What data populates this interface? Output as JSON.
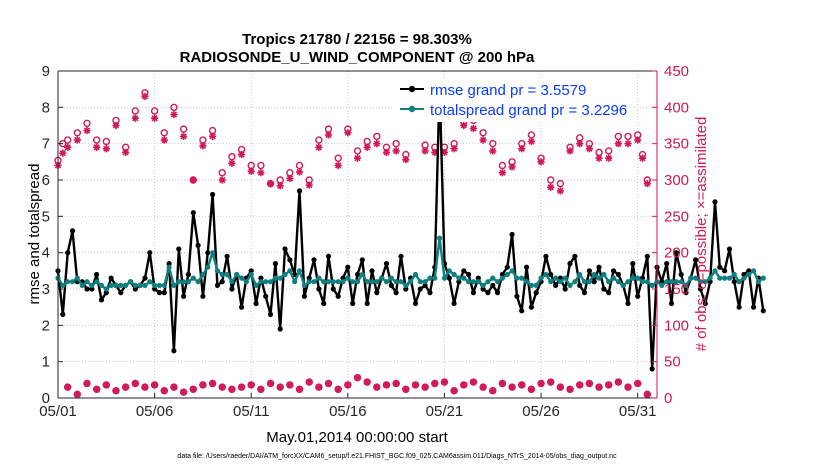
{
  "chart_data": {
    "type": "line",
    "title": "Tropics 21780 / 22156 = 98.303%",
    "subtitle": "RADIOSONDE_U_WIND_COMPONENT @ 200 hPa",
    "xlabel": "May.01,2014 00:00:00 start",
    "ylabel": "rmse and totalspread",
    "y2label": "# of obs: o=possible; ×=assimilated",
    "footnote": "data file: /Users/raeder/DAI/ATM_forcXX/CAM6_setup/f.e21.FHIST_BGC.f09_025.CAM6assim.011/Diags_NTrS_2014-05/obs_diag_output.nc",
    "x_start_day": 1,
    "x_end_day": 32,
    "xlim": [
      1,
      32
    ],
    "ylim": [
      0,
      9
    ],
    "y2lim": [
      0,
      450
    ],
    "x_tick_labels": [
      "05/01",
      "05/06",
      "05/11",
      "05/16",
      "05/21",
      "05/26",
      "05/31"
    ],
    "x_tick_days": [
      1,
      6,
      11,
      16,
      21,
      26,
      31
    ],
    "y_ticks": [
      0,
      1,
      2,
      3,
      4,
      5,
      6,
      7,
      8,
      9
    ],
    "y2_ticks": [
      0,
      50,
      100,
      150,
      200,
      250,
      300,
      350,
      400,
      450
    ],
    "grid": true,
    "legend_position": "top-right",
    "step_days": 0.25,
    "series": [
      {
        "name": "rmse grand pr = 3.5579",
        "axis": "left",
        "color": "#000000",
        "marker": "circle",
        "values": [
          3.5,
          2.3,
          4.0,
          4.6,
          3.2,
          3.2,
          3.0,
          3.0,
          3.4,
          2.7,
          2.9,
          3.3,
          3.1,
          2.9,
          3.1,
          3.2,
          3.0,
          3.1,
          3.3,
          4.0,
          3.0,
          2.9,
          2.9,
          3.7,
          1.3,
          4.1,
          2.8,
          3.4,
          5.1,
          4.2,
          2.8,
          4.0,
          5.6,
          3.1,
          3.2,
          3.9,
          3.0,
          3.4,
          2.5,
          3.3,
          3.5,
          2.6,
          3.3,
          2.8,
          2.3,
          3.7,
          1.9,
          4.1,
          3.8,
          3.4,
          5.7,
          2.8,
          3.3,
          3.8,
          3.0,
          2.6,
          3.9,
          3.0,
          2.8,
          3.3,
          3.6,
          2.6,
          3.4,
          3.8,
          2.6,
          3.5,
          2.9,
          3.3,
          3.7,
          3.1,
          2.9,
          3.9,
          3.0,
          3.3,
          2.6,
          3.0,
          3.1,
          2.9,
          3.6,
          8.6,
          3.7,
          3.3,
          2.6,
          3.2,
          3.5,
          3.4,
          2.9,
          3.3,
          3.0,
          2.9,
          3.1,
          2.9,
          3.4,
          3.6,
          4.5,
          2.8,
          2.4,
          3.6,
          2.5,
          2.9,
          3.2,
          3.9,
          3.4,
          3.1,
          3.3,
          3.0,
          3.7,
          3.9,
          3.1,
          2.9,
          3.5,
          3.2,
          3.6,
          3.0,
          2.9,
          3.5,
          3.4,
          3.1,
          2.6,
          3.7,
          2.8,
          3.3,
          3.9,
          0.8,
          3.6,
          3.2,
          3.7,
          2.6,
          4.0,
          3.4,
          2.9,
          3.3,
          3.8,
          3.0,
          2.6,
          3.2,
          5.4,
          3.6,
          3.5,
          4.1,
          3.2,
          2.5,
          3.4,
          3.5,
          2.5,
          3.3,
          2.4
        ],
        "stats": {
          "grand": 3.5579
        }
      },
      {
        "name": "totalspread grand pr = 3.2296",
        "axis": "left",
        "color": "#0f7f7f",
        "marker": "circle",
        "values": [
          3.3,
          3.1,
          3.2,
          3.2,
          3.3,
          3.1,
          3.2,
          3.1,
          3.2,
          3.1,
          3.0,
          3.1,
          3.1,
          3.1,
          3.1,
          3.2,
          3.1,
          3.1,
          3.1,
          3.2,
          3.1,
          3.1,
          3.1,
          3.6,
          3.1,
          3.2,
          3.2,
          3.2,
          3.3,
          3.2,
          3.4,
          3.6,
          4.0,
          3.5,
          3.4,
          3.4,
          3.2,
          3.4,
          3.3,
          3.2,
          3.4,
          3.1,
          3.2,
          3.2,
          3.2,
          3.3,
          3.3,
          3.4,
          3.5,
          3.2,
          3.5,
          3.1,
          3.2,
          3.2,
          3.3,
          3.2,
          3.2,
          3.2,
          3.2,
          3.2,
          3.3,
          3.2,
          3.2,
          3.4,
          3.2,
          3.2,
          3.2,
          3.3,
          3.2,
          3.3,
          3.2,
          3.2,
          3.1,
          3.2,
          3.4,
          3.2,
          3.2,
          3.3,
          3.3,
          4.4,
          3.3,
          3.5,
          3.4,
          3.3,
          3.3,
          3.2,
          3.2,
          3.2,
          3.1,
          3.2,
          3.3,
          3.2,
          3.3,
          3.4,
          3.5,
          3.3,
          3.3,
          3.2,
          3.1,
          3.1,
          3.3,
          3.4,
          3.2,
          3.3,
          3.2,
          3.3,
          3.1,
          3.2,
          3.4,
          3.2,
          3.2,
          3.4,
          3.3,
          3.4,
          3.2,
          3.3,
          3.2,
          3.1,
          3.2,
          3.3,
          3.3,
          3.2,
          3.2,
          3.1,
          3.2,
          3.1,
          3.2,
          3.2,
          3.2,
          3.2,
          3.1,
          3.3,
          3.3,
          3.2,
          3.2,
          3.3,
          3.5,
          3.3,
          3.3,
          3.3,
          3.4,
          3.2,
          3.3,
          3.4,
          3.5,
          3.2,
          3.3
        ],
        "stats": {
          "grand": 3.2296
        }
      }
    ],
    "obs_points": {
      "axis": "right",
      "color": "#d01a55",
      "possible_marker": "o",
      "assimilated_marker": "*",
      "upper_group_days": [
        1.0,
        1.25,
        1.5,
        2.0,
        2.5,
        3.0,
        3.5,
        4.0,
        4.5,
        5.0,
        5.5,
        6.0,
        6.5,
        7.0,
        7.5,
        8.0,
        8.5,
        9.0,
        9.5,
        10.0,
        10.5,
        11.0,
        11.5,
        12.0,
        12.5,
        13.0,
        13.5,
        14.0,
        14.5,
        15.0,
        15.5,
        16.0,
        16.5,
        17.0,
        17.5,
        18.0,
        18.5,
        19.0,
        19.5,
        20.0,
        20.5,
        21.0,
        21.5,
        22.0,
        22.5,
        23.0,
        23.5,
        24.0,
        24.5,
        25.0,
        25.5,
        26.0,
        26.5,
        27.0,
        27.5,
        28.0,
        28.5,
        29.0,
        29.5,
        30.0,
        30.5,
        31.0,
        31.25,
        31.5
      ],
      "upper_group_possible": [
        327,
        350,
        355,
        365,
        378,
        355,
        353,
        382,
        345,
        395,
        420,
        395,
        365,
        400,
        370,
        300,
        355,
        368,
        310,
        332,
        342,
        320,
        320,
        295,
        300,
        310,
        320,
        300,
        355,
        370,
        330,
        370,
        340,
        353,
        360,
        345,
        350,
        335,
        405,
        348,
        345,
        345,
        350,
        380,
        382,
        365,
        350,
        320,
        325,
        350,
        362,
        330,
        300,
        295,
        345,
        358,
        350,
        338,
        340,
        360,
        360,
        362,
        335,
        300
      ],
      "upper_group_assimilated": [
        320,
        337,
        345,
        355,
        368,
        345,
        343,
        375,
        338,
        385,
        415,
        385,
        355,
        390,
        360,
        300,
        347,
        360,
        300,
        323,
        335,
        312,
        310,
        295,
        292,
        302,
        311,
        293,
        345,
        362,
        320,
        365,
        330,
        345,
        350,
        338,
        340,
        328,
        400,
        340,
        338,
        338,
        343,
        375,
        371,
        355,
        340,
        310,
        318,
        343,
        353,
        325,
        290,
        285,
        340,
        350,
        343,
        330,
        330,
        350,
        350,
        355,
        330,
        295
      ],
      "lower_group_days": [
        1.5,
        2.0,
        2.5,
        3.0,
        3.5,
        4.0,
        4.5,
        5.0,
        5.5,
        6.0,
        6.5,
        7.0,
        7.5,
        8.0,
        8.5,
        9.0,
        9.5,
        10.0,
        10.5,
        11.0,
        11.5,
        12.0,
        12.5,
        13.0,
        13.5,
        14.0,
        14.5,
        15.0,
        15.5,
        16.0,
        16.5,
        17.0,
        17.5,
        18.0,
        18.5,
        19.0,
        19.5,
        20.0,
        20.5,
        21.0,
        21.5,
        22.0,
        22.5,
        23.0,
        23.5,
        24.0,
        24.5,
        25.0,
        25.5,
        26.0,
        26.5,
        27.0,
        27.5,
        28.0,
        28.5,
        29.0,
        29.5,
        30.0,
        30.5,
        31.0,
        31.5
      ],
      "lower_group_values": [
        15,
        5,
        20,
        12,
        18,
        10,
        15,
        20,
        15,
        18,
        10,
        15,
        8,
        12,
        18,
        20,
        15,
        12,
        15,
        18,
        12,
        20,
        15,
        18,
        12,
        22,
        15,
        20,
        12,
        18,
        28,
        22,
        15,
        18,
        20,
        12,
        18,
        15,
        20,
        22,
        10,
        18,
        22,
        15,
        10,
        20,
        15,
        18,
        12,
        20,
        22,
        15,
        12,
        18,
        20,
        15,
        18,
        22,
        15,
        20,
        5
      ]
    }
  }
}
